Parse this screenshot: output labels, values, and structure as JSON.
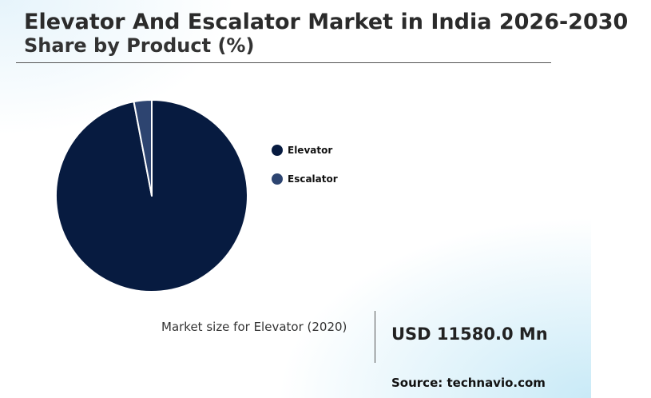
{
  "header": {
    "title": "Elevator And Escalator Market in India 2026-2030",
    "subtitle": "Share by Product (%)"
  },
  "chart_data": {
    "type": "pie",
    "categories": [
      "Elevator",
      "Escalator"
    ],
    "values": [
      97,
      3
    ],
    "colors": [
      "#071b40",
      "#2d4470"
    ],
    "legend_position": "right"
  },
  "kpi": {
    "label": "Market size for Elevator (2020)",
    "value": "USD 11580.0 Mn"
  },
  "footer": {
    "source": "Source: technavio.com"
  }
}
